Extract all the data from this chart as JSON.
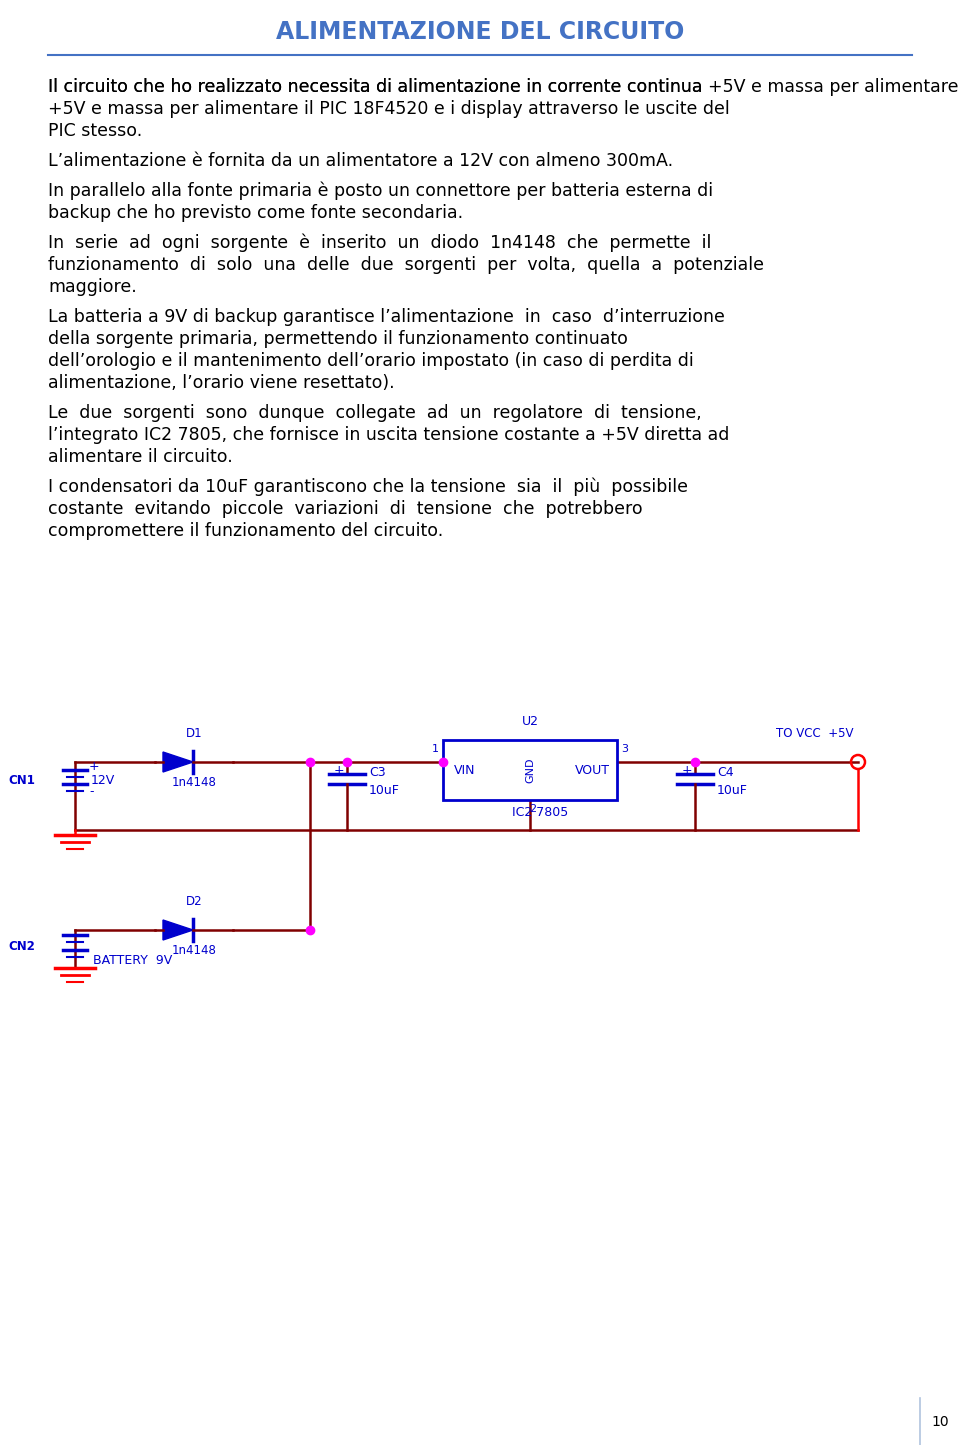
{
  "title": "ALIMENTAZIONE DEL CIRCUITO",
  "title_color": "#4472C4",
  "title_fontsize": 17,
  "body_fontsize": 12.5,
  "body_text_color": "#000000",
  "wire_color": "#800000",
  "component_color": "#0000CD",
  "junction_color": "#FF00FF",
  "gnd_color": "#FF0000",
  "vcc_color": "#FF0000",
  "page_number": "10",
  "background_color": "#FFFFFF",
  "line_color": "#4472C4",
  "para1": "Il circuito che ho realizzato necessita di alimentazione in corrente continua +5V e massa per alimentare il PIC 18F4520 e i display attraverso le uscite del PIC stesso.",
  "para2": "L’alimentazione è fornita da un alimentatore a 12V con almeno 300mA.",
  "para3": "In parallelo alla fonte primaria è posto un connettore per batteria esterna di backup che ho previsto come fonte secondaria.",
  "para4_line1": "In  serie  ad  ogni  sorgente  è  inserito  un  diodo  1n4148  che  permette  il",
  "para4_line2": "funzionamento  di  solo  una  delle  due  sorgenti  per  volta,  quella  a  potenziale",
  "para4_line3": "maggiore.",
  "para5_line1": "La batteria a 9V di backup garantisce l’alimentazione  in  caso  d’interruzione",
  "para5_line2": "della sorgente primaria, permettendo il funzionamento continuato",
  "para5_line3": "dell’orologio e il mantenimento dell’orario impostato (in caso di perdita di",
  "para5_line4": "alimentazione, l’orario viene resettato).",
  "para6_line1": "Le  due  sorgenti  sono  dunque  collegate  ad  un  regolatore  di  tensione,",
  "para6_line2": "l’integrato IC2 7805, che fornisce in uscita tensione costante a +5V diretta ad",
  "para6_line3": "alimentare il circuito.",
  "para7_line1": "I condensatori da 10uF garantiscono che la tensione  sia  il  più  possibile",
  "para7_line2": "costante  evitando  piccole  variazioni  di  tensione  che  potrebbero",
  "para7_line3": "compromettere il funzionamento del circuito."
}
